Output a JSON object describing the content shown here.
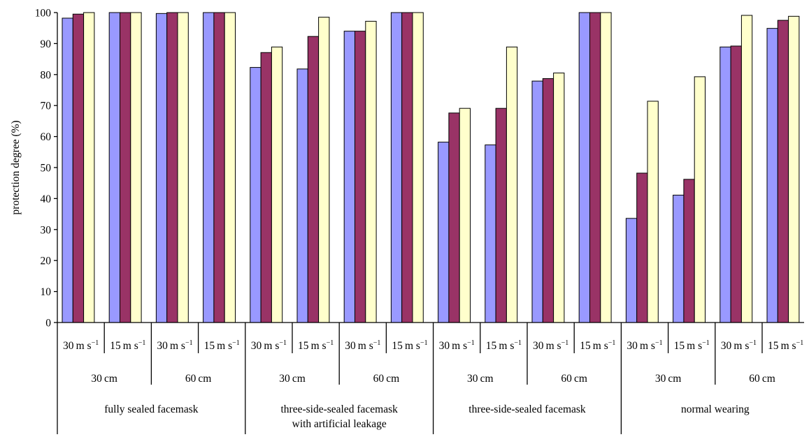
{
  "chart_data": {
    "type": "bar",
    "title": "",
    "xlabel": "",
    "ylabel": "protection degree  (%)",
    "ylim": [
      0,
      100
    ],
    "yticks": [
      0,
      10,
      20,
      30,
      40,
      50,
      60,
      70,
      80,
      90,
      100
    ],
    "grid": false,
    "legend": "none",
    "series_colors": [
      "#9999ff",
      "#993366",
      "#ffffcc"
    ],
    "speed_unit": "m s",
    "speed_superscript": "−1",
    "groups": [
      {
        "label": "fully sealed facemask",
        "distances": [
          {
            "label": "30 cm",
            "speeds": [
              {
                "speed": "30",
                "values": [
                  98.2,
                  99.5,
                  100.0
                ]
              },
              {
                "speed": "15",
                "values": [
                  100.0,
                  100.0,
                  100.0
                ]
              }
            ]
          },
          {
            "label": "60 cm",
            "speeds": [
              {
                "speed": "30",
                "values": [
                  99.7,
                  100.0,
                  100.0
                ]
              },
              {
                "speed": "15",
                "values": [
                  100.0,
                  100.0,
                  100.0
                ]
              }
            ]
          }
        ]
      },
      {
        "label": "three-side-sealed facemask",
        "label2": "with artificial leakage",
        "distances": [
          {
            "label": "30 cm",
            "speeds": [
              {
                "speed": "30",
                "values": [
                  82.3,
                  87.1,
                  88.9
                ]
              },
              {
                "speed": "15",
                "values": [
                  81.8,
                  92.3,
                  98.5
                ]
              }
            ]
          },
          {
            "label": "60 cm",
            "speeds": [
              {
                "speed": "30",
                "values": [
                  94.0,
                  94.0,
                  97.2
                ]
              },
              {
                "speed": "15",
                "values": [
                  100.0,
                  100.0,
                  100.0
                ]
              }
            ]
          }
        ]
      },
      {
        "label": "three-side-sealed facemask",
        "distances": [
          {
            "label": "30 cm",
            "speeds": [
              {
                "speed": "30",
                "values": [
                  58.2,
                  67.6,
                  69.1
                ]
              },
              {
                "speed": "15",
                "values": [
                  57.3,
                  69.1,
                  88.9
                ]
              }
            ]
          },
          {
            "label": "60 cm",
            "speeds": [
              {
                "speed": "30",
                "values": [
                  77.9,
                  78.7,
                  80.5
                ]
              },
              {
                "speed": "15",
                "values": [
                  100.0,
                  100.0,
                  100.0
                ]
              }
            ]
          }
        ]
      },
      {
        "label": "normal wearing",
        "distances": [
          {
            "label": "30 cm",
            "speeds": [
              {
                "speed": "30",
                "values": [
                  33.6,
                  48.2,
                  71.4
                ]
              },
              {
                "speed": "15",
                "values": [
                  41.1,
                  46.2,
                  79.3
                ]
              }
            ]
          },
          {
            "label": "60 cm",
            "speeds": [
              {
                "speed": "30",
                "values": [
                  88.9,
                  89.2,
                  99.1
                ]
              },
              {
                "speed": "15",
                "values": [
                  94.9,
                  97.5,
                  98.8
                ]
              }
            ]
          }
        ]
      }
    ]
  }
}
